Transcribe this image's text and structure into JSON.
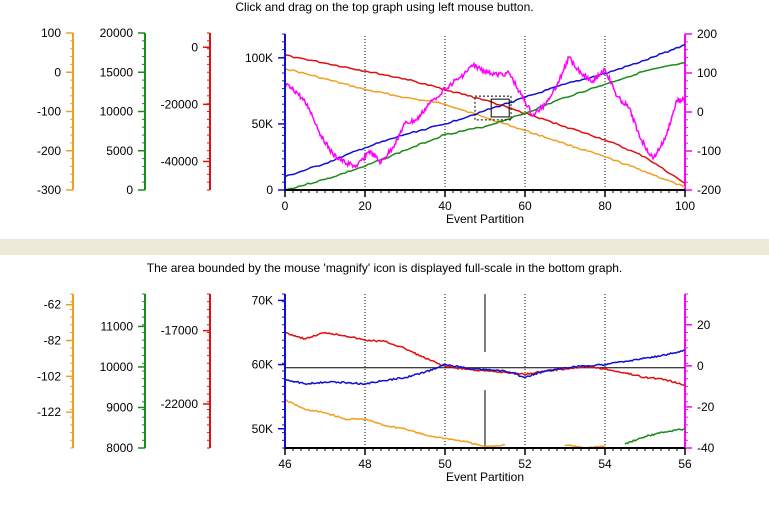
{
  "top_caption": "Click and drag on the top graph using left mouse button.",
  "bottom_caption": "The area bounded by the mouse 'magnify' icon is displayed full-scale in the bottom graph.",
  "colors": {
    "orange": "#f0a020",
    "green": "#1a8a1a",
    "red": "#e01010",
    "blue": "#1010d0",
    "magenta": "#ff00ff",
    "divider": "#ece9d8"
  },
  "chart_data": [
    {
      "type": "line",
      "xlabel": "Event Partition",
      "xlim": [
        0,
        100
      ],
      "x_ticks": [
        "0",
        "20",
        "40",
        "60",
        "80",
        "100"
      ],
      "vertical_markers": [
        20,
        40,
        60,
        80
      ],
      "selection_box": {
        "x": [
          47.5,
          56.5
        ],
        "y": [
          53000,
          71000
        ]
      },
      "axes": {
        "orange": {
          "side": "left",
          "range": [
            -300,
            100
          ],
          "ticks": [
            "100",
            "0",
            "-100",
            "-200",
            "-300"
          ]
        },
        "green": {
          "side": "left",
          "range": [
            0,
            20000
          ],
          "ticks": [
            "20000",
            "15000",
            "10000",
            "5000",
            "0"
          ]
        },
        "red": {
          "side": "left",
          "range": [
            -50000,
            5000
          ],
          "ticks": [
            "0",
            "-20000",
            "-40000"
          ]
        },
        "blue": {
          "side": "left",
          "range": [
            0,
            118000
          ],
          "ticks": [
            "100K",
            "50K",
            "0"
          ]
        },
        "magenta": {
          "side": "right",
          "range": [
            -200,
            200
          ],
          "ticks": [
            "200",
            "100",
            "0",
            "-100",
            "-200"
          ]
        }
      },
      "series": [
        {
          "color": "orange",
          "axis": "blue",
          "x": [
            0,
            10,
            20,
            30,
            40,
            50,
            60,
            70,
            80,
            90,
            100
          ],
          "y": [
            92000,
            84000,
            76000,
            70000,
            65000,
            55000,
            45000,
            35000,
            25000,
            14000,
            2000
          ]
        },
        {
          "color": "red",
          "axis": "blue",
          "x": [
            0,
            10,
            20,
            30,
            40,
            50,
            60,
            70,
            80,
            90,
            100
          ],
          "y": [
            102000,
            96000,
            90000,
            84000,
            76000,
            68000,
            58000,
            48000,
            38000,
            25000,
            5000
          ]
        },
        {
          "color": "blue",
          "axis": "blue",
          "x": [
            0,
            10,
            20,
            30,
            40,
            50,
            60,
            70,
            80,
            90,
            100
          ],
          "y": [
            10000,
            20000,
            32000,
            42000,
            50000,
            60000,
            70000,
            80000,
            88000,
            98000,
            110000
          ]
        },
        {
          "color": "green",
          "axis": "blue",
          "x": [
            0,
            10,
            20,
            30,
            40,
            50,
            60,
            70,
            80,
            90,
            100
          ],
          "y": [
            0,
            8000,
            18000,
            30000,
            42000,
            48000,
            58000,
            70000,
            80000,
            90000,
            96000
          ]
        },
        {
          "color": "magenta",
          "axis": "magenta",
          "x": [
            0,
            3,
            6,
            9,
            12,
            15,
            18,
            21,
            24,
            27,
            30,
            33,
            36,
            40,
            44,
            47,
            50,
            53,
            56,
            59,
            62,
            65,
            68,
            71,
            74,
            77,
            80,
            83,
            86,
            89,
            92,
            95,
            98,
            100
          ],
          "y": [
            70,
            50,
            10,
            -60,
            -110,
            -130,
            -140,
            -100,
            -130,
            -90,
            -30,
            -20,
            20,
            60,
            90,
            120,
            105,
            95,
            100,
            45,
            -10,
            20,
            70,
            140,
            100,
            80,
            110,
            40,
            10,
            -70,
            -120,
            -70,
            30,
            30
          ]
        }
      ]
    },
    {
      "type": "line",
      "xlabel": "Event Partition",
      "xlim": [
        46,
        56
      ],
      "x_ticks": [
        "46",
        "48",
        "50",
        "52",
        "54",
        "56"
      ],
      "vertical_markers": [
        48,
        50,
        52,
        54
      ],
      "cursor_x": 51,
      "reference_line_y": 59500,
      "axes": {
        "orange": {
          "side": "left",
          "range": [
            -142,
            -56
          ],
          "ticks": [
            "-62",
            "-82",
            "-102",
            "-122"
          ]
        },
        "green": {
          "side": "left",
          "range": [
            8000,
            11800
          ],
          "ticks": [
            "11000",
            "10000",
            "9000",
            "8000"
          ]
        },
        "red": {
          "side": "left",
          "range": [
            -25000,
            -14500
          ],
          "ticks": [
            "-17000",
            "-22000"
          ]
        },
        "blue": {
          "side": "left",
          "range": [
            47000,
            71000
          ],
          "ticks": [
            "70K",
            "60K",
            "50K"
          ]
        },
        "magenta": {
          "side": "right",
          "range": [
            -40,
            35
          ],
          "ticks": [
            "20",
            "0",
            "-20",
            "-40"
          ]
        }
      },
      "series": [
        {
          "color": "orange",
          "axis": "blue",
          "x": [
            46,
            46.5,
            47,
            47.5,
            48,
            48.5,
            49,
            49.5,
            50,
            50.5,
            51,
            51.5
          ],
          "y": [
            54500,
            53000,
            52500,
            51500,
            51500,
            50500,
            50000,
            49000,
            48500,
            48000,
            47200,
            47500
          ]
        },
        {
          "color": "orange",
          "axis": "blue",
          "x": [
            53,
            53.5,
            54
          ],
          "y": [
            47500,
            47000,
            47300
          ]
        },
        {
          "color": "red",
          "axis": "blue",
          "x": [
            46,
            46.5,
            47,
            47.5,
            48,
            48.5,
            49,
            49.5,
            50,
            50.5,
            51,
            51.5,
            52,
            52.5,
            53,
            53.5,
            54,
            54.5,
            55,
            55.5,
            56
          ],
          "y": [
            65000,
            64000,
            65000,
            64500,
            63800,
            63600,
            62500,
            61000,
            59700,
            59300,
            59000,
            58800,
            58500,
            59000,
            59300,
            59700,
            59300,
            58700,
            58000,
            57700,
            56700
          ]
        },
        {
          "color": "blue",
          "axis": "blue",
          "x": [
            46,
            46.5,
            47,
            47.5,
            48,
            48.5,
            49,
            49.5,
            50,
            50.5,
            51,
            51.5,
            52,
            52.5,
            53,
            53.5,
            54,
            54.5,
            55,
            55.5,
            56
          ],
          "y": [
            57700,
            57000,
            57300,
            57200,
            57000,
            57500,
            58000,
            58800,
            60000,
            59500,
            59200,
            59000,
            58000,
            59000,
            59500,
            59800,
            60000,
            60500,
            61000,
            61500,
            62200
          ]
        },
        {
          "color": "green",
          "axis": "blue",
          "x": [
            54.5,
            55,
            55.5,
            56
          ],
          "y": [
            47600,
            48800,
            49500,
            50000
          ]
        }
      ]
    }
  ]
}
